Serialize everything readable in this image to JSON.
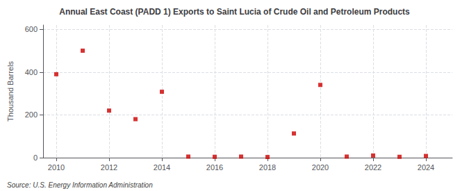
{
  "chart_data": {
    "type": "scatter",
    "title": "Annual East Coast (PADD 1) Exports to Saint Lucia of Crude Oil and Petroleum Products",
    "y_label": "Thousand Barrels",
    "annotations": [
      "Source: U.S. Energy Information Administration"
    ],
    "x": [
      2010,
      2011,
      2012,
      2013,
      2014,
      2015,
      2016,
      2017,
      2018,
      2019,
      2020,
      2021,
      2022,
      2023,
      2024
    ],
    "values": [
      390,
      500,
      220,
      180,
      308,
      5,
      4,
      5,
      3,
      113,
      340,
      5,
      10,
      4,
      8
    ],
    "color": "#cc0000",
    "marker": "square",
    "xlim": [
      2009.5,
      2025.0
    ],
    "xticks": [
      2010,
      2012,
      2014,
      2016,
      2018,
      2020,
      2022,
      2024
    ],
    "ylim": [
      0,
      620
    ],
    "yticks": [
      0,
      200,
      400,
      600
    ],
    "grid": true
  }
}
